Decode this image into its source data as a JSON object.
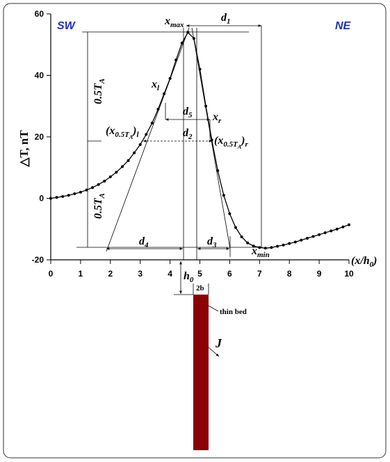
{
  "chart_data": {
    "type": "line",
    "y_title": "△T, nT",
    "x_title": {
      "open": "(x/h",
      "sub": "0",
      "close": ")"
    },
    "color": "#000000",
    "x": [
      0,
      0.2,
      0.4,
      0.6,
      0.8,
      1,
      1.2,
      1.4,
      1.6,
      1.8,
      2,
      2.2,
      2.4,
      2.6,
      2.8,
      3,
      3.2,
      3.4,
      3.6,
      3.8,
      4,
      4.2,
      4.4,
      4.6,
      4.8,
      5,
      5.2,
      5.4,
      5.6,
      5.8,
      6,
      6.2,
      6.4,
      6.6,
      6.8,
      7,
      7.2,
      7.4,
      7.6,
      7.8,
      8,
      8.2,
      8.4,
      8.6,
      8.8,
      9,
      9.2,
      9.4,
      9.6,
      9.8,
      10
    ],
    "values": [
      0,
      0.3,
      0.6,
      1,
      1.5,
      2,
      2.7,
      3.5,
      4.5,
      5.6,
      7,
      8.5,
      10.3,
      12.3,
      14.8,
      17.5,
      20.8,
      24.5,
      29,
      34,
      39,
      45,
      50.5,
      54,
      52,
      42,
      30,
      19,
      9,
      1,
      -5,
      -9.5,
      -12.5,
      -14.5,
      -15.5,
      -16,
      -16.2,
      -16,
      -15.6,
      -15.2,
      -14.7,
      -14.2,
      -13.6,
      -13,
      -12.4,
      -11.8,
      -11.2,
      -10.6,
      -10,
      -9.3,
      -8.6
    ],
    "xlim": [
      0,
      10
    ],
    "ylim": [
      -20,
      60
    ],
    "xticks": [
      0,
      1,
      2,
      3,
      4,
      5,
      6,
      7,
      8,
      9,
      10
    ],
    "yticks": [
      -20,
      0,
      20,
      40,
      60
    ],
    "annotations": {
      "sw": "SW",
      "ne": "NE",
      "xmax": {
        "text": "x",
        "sub": "max"
      },
      "d1": {
        "text": "d",
        "sub": "1"
      },
      "half_upper": {
        "text": "0.5T",
        "sub": "A"
      },
      "half_lower": {
        "text": "0.5T",
        "sub": "A"
      },
      "xl": {
        "text": "x",
        "sub": "l"
      },
      "xr": {
        "text": "x",
        "sub": "r"
      },
      "d5": {
        "text": "d",
        "sub": "5"
      },
      "d2": {
        "text": "d",
        "sub": "2"
      },
      "x05l": {
        "open": "(x",
        "sub": "0.5T",
        "subsub": "A",
        "close": ")",
        "outer_sub": "l"
      },
      "x05r": {
        "open": "(x",
        "sub": "0.5T",
        "subsub": "A",
        "close": ")",
        "outer_sub": "r"
      },
      "d4": {
        "text": "d",
        "sub": "4"
      },
      "d3": {
        "text": "d",
        "sub": "3"
      },
      "xmin": {
        "text": "x",
        "sub": "min"
      },
      "h0": {
        "text": "h",
        "sub": "0"
      },
      "width": "2b",
      "thin_bed": "thin bed",
      "J": "J"
    }
  }
}
